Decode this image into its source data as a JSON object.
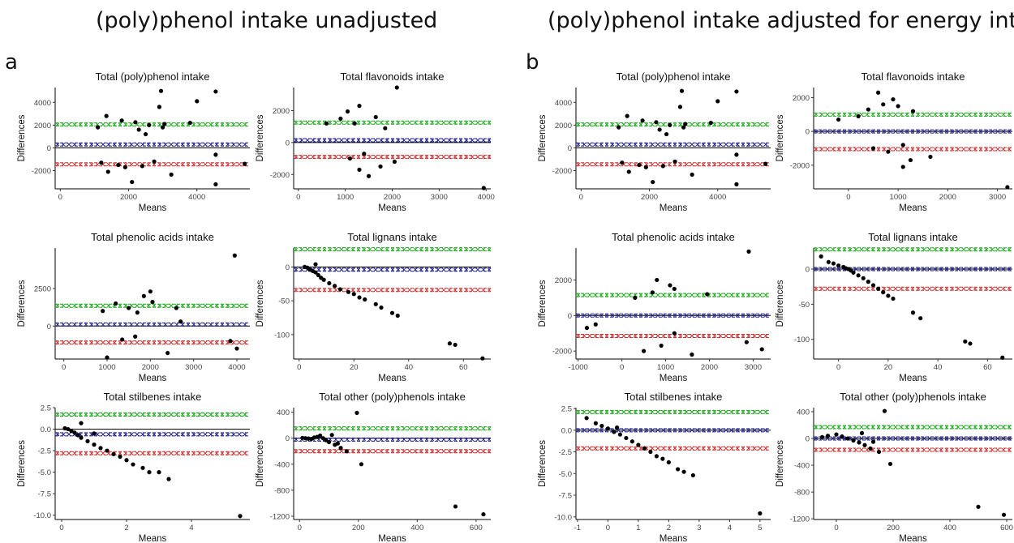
{
  "headings": {
    "left": "(poly)phenol intake unadjusted",
    "right": "(poly)phenol intake adjusted for energy intake",
    "label_a": "a",
    "label_b": "b"
  },
  "colors": {
    "upper_loa": "#22aa22",
    "mean_bias": "#22228b",
    "lower_loa": "#cc3333",
    "points": "#000000",
    "zero": "#000000"
  },
  "chart_data": [
    {
      "type": "scatter",
      "panel": "a",
      "title": "Total (poly)phenol intake",
      "xlabel": "Means",
      "ylabel": "Differences",
      "xlim": [
        -150,
        5550
      ],
      "ylim": [
        -3600,
        5300
      ],
      "xticks": [
        0,
        2000,
        4000
      ],
      "yticks": [
        -2000,
        0,
        2000,
        4000
      ],
      "bias": 300,
      "upper_loa": 2050,
      "lower_loa": -1450,
      "points": [
        [
          2950,
          5000
        ],
        [
          4550,
          4950
        ],
        [
          2900,
          3600
        ],
        [
          4000,
          4100
        ],
        [
          3800,
          2200
        ],
        [
          3050,
          2100
        ],
        [
          4550,
          -600
        ],
        [
          4550,
          -3200
        ],
        [
          5400,
          -1400
        ],
        [
          2100,
          -3000
        ],
        [
          3250,
          -2350
        ],
        [
          1400,
          -2100
        ],
        [
          1350,
          2800
        ],
        [
          1800,
          2400
        ],
        [
          2200,
          2250
        ],
        [
          2600,
          2000
        ],
        [
          3000,
          1800
        ],
        [
          2750,
          -1200
        ],
        [
          2400,
          -1600
        ],
        [
          1100,
          1800
        ],
        [
          1200,
          -1300
        ],
        [
          1900,
          -1700
        ],
        [
          2300,
          1600
        ],
        [
          2500,
          1200
        ],
        [
          1700,
          -1500
        ]
      ]
    },
    {
      "type": "scatter",
      "panel": "a",
      "title": "Total flavonoids intake",
      "xlabel": "Means",
      "ylabel": "Differences",
      "xlim": [
        -100,
        4100
      ],
      "ylim": [
        -2900,
        3450
      ],
      "xticks": [
        0,
        1000,
        2000,
        3000,
        4000
      ],
      "yticks": [
        -2000,
        0,
        2000
      ],
      "bias": 150,
      "upper_loa": 1250,
      "lower_loa": -900,
      "points": [
        [
          2100,
          3450
        ],
        [
          3950,
          -2850
        ],
        [
          1300,
          2300
        ],
        [
          1050,
          1950
        ],
        [
          1500,
          -2100
        ],
        [
          2050,
          -1200
        ],
        [
          1650,
          1600
        ],
        [
          1200,
          1200
        ],
        [
          1850,
          900
        ],
        [
          1400,
          -700
        ],
        [
          1750,
          -1500
        ],
        [
          900,
          1500
        ],
        [
          600,
          1200
        ],
        [
          1100,
          -1000
        ],
        [
          1300,
          -1700
        ]
      ]
    },
    {
      "type": "scatter",
      "panel": "a",
      "title": "Total phenolic acids intake",
      "xlabel": "Means",
      "ylabel": "Differences",
      "xlim": [
        -200,
        4300
      ],
      "ylim": [
        -2200,
        5200
      ],
      "xticks": [
        0,
        1000,
        2000,
        3000,
        4000
      ],
      "yticks": [
        0,
        2500
      ],
      "bias": 100,
      "upper_loa": 1350,
      "lower_loa": -1100,
      "points": [
        [
          3950,
          4700
        ],
        [
          2000,
          2300
        ],
        [
          1850,
          2000
        ],
        [
          2600,
          1200
        ],
        [
          2700,
          300
        ],
        [
          2400,
          -1800
        ],
        [
          4000,
          -1500
        ],
        [
          3850,
          -1000
        ],
        [
          1000,
          -2100
        ],
        [
          1200,
          1500
        ],
        [
          1500,
          1200
        ],
        [
          1700,
          900
        ],
        [
          900,
          1000
        ],
        [
          2050,
          1600
        ],
        [
          1650,
          -700
        ],
        [
          1350,
          -900
        ]
      ]
    },
    {
      "type": "scatter",
      "panel": "a",
      "title": "Total lignans intake",
      "xlabel": "Means",
      "ylabel": "Differences",
      "xlim": [
        -2,
        70
      ],
      "ylim": [
        -136,
        28
      ],
      "xticks": [
        0,
        20,
        40,
        60
      ],
      "yticks": [
        -100,
        -50,
        0
      ],
      "bias": -4,
      "upper_loa": 26,
      "lower_loa": -34,
      "points": [
        [
          55,
          -113
        ],
        [
          57,
          -115
        ],
        [
          67,
          -135
        ],
        [
          36,
          -72
        ],
        [
          34,
          -68
        ],
        [
          30,
          -60
        ],
        [
          28,
          -55
        ],
        [
          22,
          -45
        ],
        [
          24,
          -48
        ],
        [
          20,
          -40
        ],
        [
          18,
          -37
        ],
        [
          15,
          -33
        ],
        [
          13,
          -28
        ],
        [
          11,
          -24
        ],
        [
          9,
          -19
        ],
        [
          8,
          -16
        ],
        [
          7,
          -12
        ],
        [
          6,
          -8
        ],
        [
          5,
          -6
        ],
        [
          4,
          -4
        ],
        [
          3,
          -1
        ],
        [
          2,
          0
        ],
        [
          6,
          4
        ]
      ]
    },
    {
      "type": "scatter",
      "panel": "a",
      "title": "Total stilbenes intake",
      "xlabel": "Means",
      "ylabel": "Differences",
      "xlim": [
        -0.2,
        5.8
      ],
      "ylim": [
        -10.5,
        2.5
      ],
      "xticks": [
        0,
        2,
        4
      ],
      "yticks": [
        -10.0,
        -7.5,
        -5.0,
        -2.5,
        0.0,
        2.5
      ],
      "bias": -0.6,
      "upper_loa": 1.7,
      "lower_loa": -2.8,
      "points": [
        [
          5.5,
          -10.1
        ],
        [
          3.3,
          -5.8
        ],
        [
          3.0,
          -5.0
        ],
        [
          2.7,
          -5.0
        ],
        [
          2.5,
          -4.5
        ],
        [
          2.2,
          -4.1
        ],
        [
          2.0,
          -3.6
        ],
        [
          1.8,
          -3.2
        ],
        [
          1.6,
          -2.9
        ],
        [
          1.4,
          -2.5
        ],
        [
          1.2,
          -2.2
        ],
        [
          1.0,
          -1.8
        ],
        [
          0.8,
          -1.4
        ],
        [
          0.6,
          -1.0
        ],
        [
          0.5,
          -0.7
        ],
        [
          0.4,
          -0.4
        ],
        [
          0.3,
          -0.2
        ],
        [
          0.2,
          0.0
        ],
        [
          0.1,
          0.1
        ],
        [
          0.6,
          0.7
        ],
        [
          1.0,
          -0.5
        ]
      ]
    },
    {
      "type": "scatter",
      "panel": "a",
      "title": "Total other (poly)phenols intake",
      "xlabel": "Means",
      "ylabel": "Differences",
      "xlim": [
        -20,
        650
      ],
      "ylim": [
        -1250,
        470
      ],
      "xticks": [
        0,
        200,
        400,
        600
      ],
      "yticks": [
        -1200,
        -800,
        -400,
        0,
        400
      ],
      "bias": -20,
      "upper_loa": 150,
      "lower_loa": -200,
      "points": [
        [
          195,
          390
        ],
        [
          530,
          -1050
        ],
        [
          625,
          -1170
        ],
        [
          210,
          -400
        ],
        [
          160,
          -200
        ],
        [
          140,
          -150
        ],
        [
          120,
          -100
        ],
        [
          100,
          -60
        ],
        [
          90,
          -30
        ],
        [
          80,
          0
        ],
        [
          70,
          40
        ],
        [
          60,
          20
        ],
        [
          50,
          10
        ],
        [
          40,
          -10
        ],
        [
          30,
          -5
        ],
        [
          20,
          0
        ],
        [
          10,
          5
        ],
        [
          110,
          50
        ],
        [
          130,
          -80
        ]
      ]
    },
    {
      "type": "scatter",
      "panel": "b",
      "title": "Total (poly)phenol intake",
      "xlabel": "Means",
      "ylabel": "Differences",
      "xlim": [
        -150,
        5550
      ],
      "ylim": [
        -3600,
        5300
      ],
      "xticks": [
        0,
        2000,
        4000
      ],
      "yticks": [
        -2000,
        0,
        2000,
        4000
      ],
      "bias": 300,
      "upper_loa": 2050,
      "lower_loa": -1450,
      "points": [
        [
          2950,
          5000
        ],
        [
          4550,
          4950
        ],
        [
          2900,
          3600
        ],
        [
          4000,
          4100
        ],
        [
          3800,
          2200
        ],
        [
          3050,
          2100
        ],
        [
          4550,
          -600
        ],
        [
          4550,
          -3200
        ],
        [
          5400,
          -1400
        ],
        [
          2100,
          -3000
        ],
        [
          3250,
          -2350
        ],
        [
          1400,
          -2100
        ],
        [
          1350,
          2800
        ],
        [
          1800,
          2400
        ],
        [
          2200,
          2250
        ],
        [
          2600,
          2000
        ],
        [
          3000,
          1800
        ],
        [
          2750,
          -1200
        ],
        [
          2400,
          -1600
        ],
        [
          1100,
          1800
        ],
        [
          1200,
          -1300
        ],
        [
          1900,
          -1700
        ],
        [
          2300,
          1600
        ],
        [
          2500,
          1200
        ],
        [
          1700,
          -1500
        ]
      ]
    },
    {
      "type": "scatter",
      "panel": "b",
      "title": "Total flavonoids intake",
      "xlabel": "Means",
      "ylabel": "Differences",
      "xlim": [
        -700,
        3300
      ],
      "ylim": [
        -3400,
        2600
      ],
      "xticks": [
        0,
        1000,
        2000,
        3000
      ],
      "yticks": [
        -2000,
        0,
        2000
      ],
      "bias": 0,
      "upper_loa": 1000,
      "lower_loa": -1050,
      "points": [
        [
          3200,
          -3300
        ],
        [
          1100,
          -2100
        ],
        [
          1250,
          -1700
        ],
        [
          1650,
          -1500
        ],
        [
          600,
          2300
        ],
        [
          900,
          1900
        ],
        [
          1000,
          1500
        ],
        [
          1300,
          1200
        ],
        [
          700,
          1600
        ],
        [
          400,
          1300
        ],
        [
          800,
          -1200
        ],
        [
          500,
          -1000
        ],
        [
          1100,
          -800
        ],
        [
          200,
          900
        ],
        [
          -200,
          700
        ]
      ]
    },
    {
      "type": "scatter",
      "panel": "b",
      "title": "Total phenolic acids intake",
      "xlabel": "Means",
      "ylabel": "Differences",
      "xlim": [
        -1050,
        3400
      ],
      "ylim": [
        -2450,
        3800
      ],
      "xticks": [
        -1000,
        0,
        1000,
        2000,
        3000
      ],
      "yticks": [
        -2000,
        0,
        2000
      ],
      "bias": 0,
      "upper_loa": 1150,
      "lower_loa": -1150,
      "points": [
        [
          2900,
          3600
        ],
        [
          3200,
          -1900
        ],
        [
          2850,
          -1500
        ],
        [
          1950,
          1200
        ],
        [
          1600,
          -2200
        ],
        [
          800,
          2000
        ],
        [
          1200,
          1500
        ],
        [
          1100,
          1700
        ],
        [
          -800,
          -700
        ],
        [
          -600,
          -500
        ],
        [
          500,
          -2000
        ],
        [
          900,
          -1700
        ],
        [
          1200,
          -1000
        ],
        [
          700,
          1300
        ],
        [
          300,
          1000
        ]
      ]
    },
    {
      "type": "scatter",
      "panel": "b",
      "title": "Total lignans intake",
      "xlabel": "Means",
      "ylabel": "Differences",
      "xlim": [
        -10,
        70
      ],
      "ylim": [
        -128,
        30
      ],
      "xticks": [
        0,
        20,
        40,
        60
      ],
      "yticks": [
        -100,
        -50,
        0
      ],
      "bias": 0,
      "upper_loa": 28,
      "lower_loa": -28,
      "points": [
        [
          -7,
          18
        ],
        [
          -4,
          10
        ],
        [
          0,
          5
        ],
        [
          2,
          3
        ],
        [
          3,
          1
        ],
        [
          5,
          -2
        ],
        [
          6,
          -5
        ],
        [
          8,
          -9
        ],
        [
          10,
          -13
        ],
        [
          12,
          -18
        ],
        [
          14,
          -23
        ],
        [
          16,
          -28
        ],
        [
          18,
          -33
        ],
        [
          20,
          -38
        ],
        [
          22,
          -42
        ],
        [
          30,
          -62
        ],
        [
          33,
          -70
        ],
        [
          51,
          -103
        ],
        [
          53,
          -106
        ],
        [
          66,
          -126
        ],
        [
          -2,
          8
        ],
        [
          4,
          0
        ]
      ]
    },
    {
      "type": "scatter",
      "panel": "b",
      "title": "Total stilbenes intake",
      "xlabel": "Means",
      "ylabel": "Differences",
      "xlim": [
        -1.05,
        5.35
      ],
      "ylim": [
        -10.3,
        2.6
      ],
      "xticks": [
        -1,
        0,
        1,
        2,
        3,
        4,
        5
      ],
      "yticks": [
        -10.0,
        -7.5,
        -5.0,
        -2.5,
        0.0,
        2.5
      ],
      "bias": 0,
      "upper_loa": 2.1,
      "lower_loa": -2.1,
      "points": [
        [
          5.0,
          -9.6
        ],
        [
          2.8,
          -5.2
        ],
        [
          2.5,
          -4.8
        ],
        [
          2.3,
          -4.5
        ],
        [
          2.0,
          -3.7
        ],
        [
          1.8,
          -3.3
        ],
        [
          1.6,
          -3.0
        ],
        [
          1.4,
          -2.5
        ],
        [
          1.2,
          -2.1
        ],
        [
          1.0,
          -1.7
        ],
        [
          0.8,
          -1.3
        ],
        [
          0.6,
          -0.9
        ],
        [
          0.4,
          -0.5
        ],
        [
          0.2,
          -0.2
        ],
        [
          0.0,
          0.2
        ],
        [
          -0.2,
          0.5
        ],
        [
          -0.4,
          0.8
        ],
        [
          -0.7,
          1.4
        ],
        [
          0.3,
          0.3
        ]
      ]
    },
    {
      "type": "scatter",
      "panel": "b",
      "title": "Total other (poly)phenols intake",
      "xlabel": "Means",
      "ylabel": "Differences",
      "xlim": [
        -80,
        620
      ],
      "ylim": [
        -1210,
        460
      ],
      "xticks": [
        0,
        200,
        400,
        600
      ],
      "yticks": [
        -1200,
        -800,
        -400,
        0,
        400
      ],
      "bias": 0,
      "upper_loa": 170,
      "lower_loa": -170,
      "points": [
        [
          170,
          410
        ],
        [
          500,
          -1020
        ],
        [
          590,
          -1140
        ],
        [
          190,
          -380
        ],
        [
          150,
          -200
        ],
        [
          120,
          -150
        ],
        [
          100,
          -100
        ],
        [
          80,
          -60
        ],
        [
          60,
          -30
        ],
        [
          40,
          0
        ],
        [
          20,
          30
        ],
        [
          0,
          60
        ],
        [
          -30,
          40
        ],
        [
          -50,
          20
        ],
        [
          90,
          80
        ],
        [
          130,
          -50
        ]
      ]
    }
  ]
}
